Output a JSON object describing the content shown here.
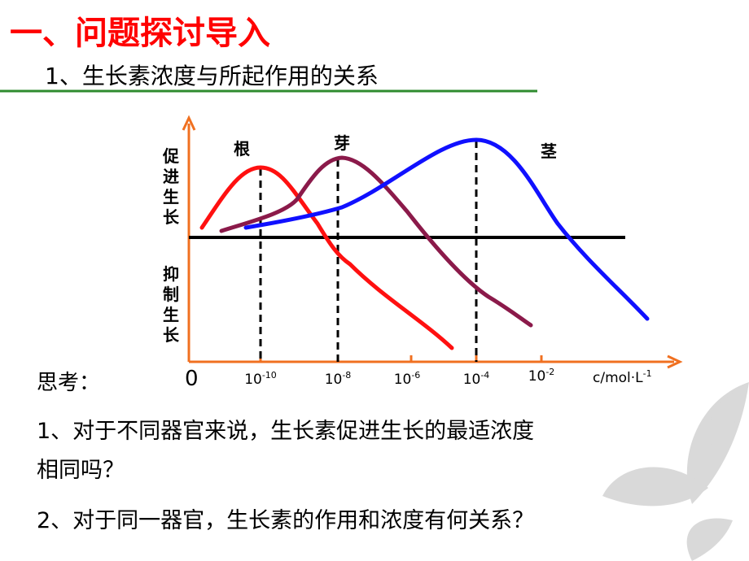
{
  "header": {
    "title": "一、问题探讨导入",
    "subtitle": "1、生长素浓度与所起作用的关系"
  },
  "diagram": {
    "y_label_top": "促进生长",
    "y_label_bottom": "抑制生长",
    "curve_labels": [
      "根",
      "芽",
      "茎"
    ],
    "origin": "0",
    "x_ticks": [
      {
        "base": "10",
        "exp": "-10"
      },
      {
        "base": "10",
        "exp": "-8"
      },
      {
        "base": "10",
        "exp": "-6"
      },
      {
        "base": "10",
        "exp": "-4"
      },
      {
        "base": "10",
        "exp": "-2"
      }
    ],
    "x_axis_label": {
      "text": "c/mol·L",
      "exp": "-1"
    }
  },
  "questions": {
    "heading": "思考：",
    "lines": [
      "1、对于不同器官来说，生长素促进生长的最适浓度",
      "相同吗？",
      "2、对于同一器官，生长素的作用和浓度有何关系？"
    ]
  }
}
